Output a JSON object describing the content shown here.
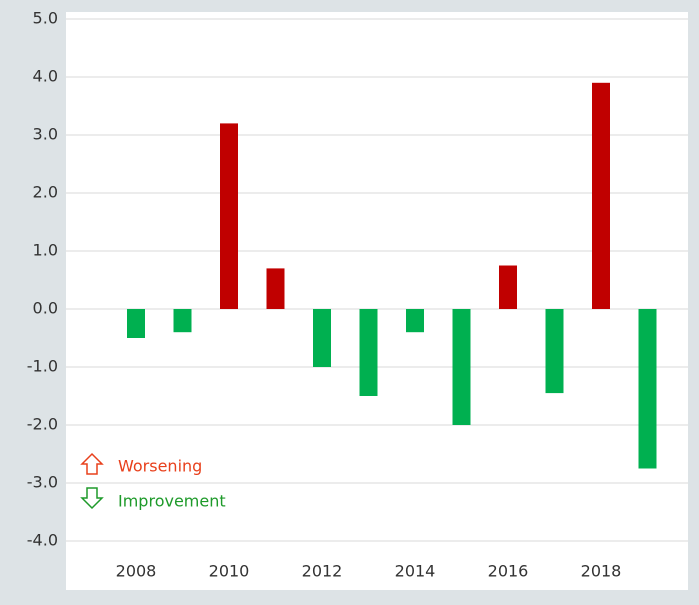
{
  "chart_data": {
    "type": "bar",
    "categories": [
      "2008",
      null,
      "2010",
      null,
      "2012",
      null,
      "2014",
      null,
      "2016",
      null,
      "2018",
      null
    ],
    "values": [
      -0.5,
      -0.4,
      3.2,
      0.7,
      -1.0,
      -1.5,
      -0.4,
      -2.0,
      0.75,
      -1.45,
      3.9,
      -2.75
    ],
    "colors": [
      "#00b050",
      "#00b050",
      "#c00000",
      "#c00000",
      "#00b050",
      "#00b050",
      "#00b050",
      "#00b050",
      "#c00000",
      "#00b050",
      "#c00000",
      "#00b050"
    ],
    "ylim": [
      -4,
      5
    ],
    "yticks": [
      {
        "value": -4,
        "label": "-4.0"
      },
      {
        "value": -3,
        "label": "-3.0"
      },
      {
        "value": -2,
        "label": "-2.0"
      },
      {
        "value": -1,
        "label": "-1.0"
      },
      {
        "value": 0,
        "label": "0.0"
      },
      {
        "value": 1,
        "label": "1.0"
      },
      {
        "value": 2,
        "label": "2.0"
      },
      {
        "value": 3,
        "label": "3.0"
      },
      {
        "value": 4,
        "label": "4.0"
      },
      {
        "value": 5,
        "label": "5.0"
      }
    ],
    "grid": true,
    "legend": [
      {
        "label": "Worsening",
        "color": "#e8401c"
      },
      {
        "label": "Improvement",
        "color": "#1e9a2a"
      }
    ]
  }
}
